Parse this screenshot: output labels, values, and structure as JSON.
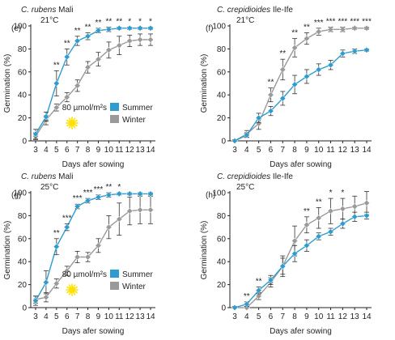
{
  "colors": {
    "summer": "#2e9ccf",
    "winter": "#9a9a9a",
    "axis": "#231f20",
    "sun": "#ffe100"
  },
  "chart_data": [
    {
      "type": "line",
      "panel_label": "(e)",
      "title_species": "C. rubens",
      "title_rest": " Mali",
      "temperature": "21°C",
      "xlabel": "Days afer sowing",
      "ylabel": "Germination (%)",
      "x": [
        3,
        4,
        5,
        6,
        7,
        8,
        9,
        10,
        11,
        12,
        13,
        14
      ],
      "xlim": [
        3,
        14
      ],
      "ylim": [
        0,
        100
      ],
      "yticks": [
        0,
        20,
        40,
        60,
        80,
        100
      ],
      "legend_note": "80 µmol/m²s",
      "sun_symbol": "yes",
      "significance": [
        "",
        "",
        "**",
        "**",
        "**",
        "**",
        "**",
        "**",
        "**",
        "*",
        "*",
        "*"
      ],
      "series": [
        {
          "name": "Summer",
          "key": "summer",
          "values": [
            6,
            21,
            50,
            73,
            87,
            91,
            96,
            97,
            98,
            98,
            98,
            98
          ],
          "errors": [
            4,
            4,
            11,
            7,
            4,
            3,
            2,
            2,
            1,
            1,
            1,
            1
          ]
        },
        {
          "name": "Winter",
          "key": "winter",
          "values": [
            4,
            18,
            29,
            38,
            48,
            64,
            71,
            79,
            83,
            87,
            88,
            88
          ],
          "errors": [
            3,
            4,
            3,
            4,
            5,
            5,
            6,
            7,
            8,
            5,
            5,
            5
          ]
        }
      ]
    },
    {
      "type": "line",
      "panel_label": "(f)",
      "title_species": "C. crepidioides",
      "title_rest": " Ile-Ife",
      "temperature": "21°C",
      "xlabel": "Days afer sowing",
      "ylabel": "Germination (%)",
      "x": [
        3,
        4,
        5,
        6,
        7,
        8,
        9,
        10,
        11,
        12,
        13,
        14
      ],
      "xlim": [
        3,
        14
      ],
      "ylim": [
        0,
        100
      ],
      "yticks": [
        0,
        20,
        40,
        60,
        80,
        100
      ],
      "significance": [
        "",
        "",
        "",
        "**",
        "**",
        "**",
        "**",
        "***",
        "***",
        "***",
        "***",
        "***"
      ],
      "series": [
        {
          "name": "Summer",
          "key": "summer",
          "values": [
            0,
            5,
            20,
            26,
            37,
            49,
            56,
            62,
            66,
            76,
            78,
            79
          ],
          "errors": [
            1,
            2,
            4,
            4,
            6,
            8,
            6,
            5,
            4,
            3,
            2,
            1
          ]
        },
        {
          "name": "Winter",
          "key": "winter",
          "values": [
            0,
            6,
            15,
            40,
            62,
            81,
            89,
            95,
            97,
            97,
            98,
            98
          ],
          "errors": [
            1,
            3,
            5,
            6,
            9,
            8,
            5,
            3,
            2,
            2,
            1,
            1
          ]
        }
      ]
    },
    {
      "type": "line",
      "panel_label": "(g)",
      "title_species": "C. rubens",
      "title_rest": " Mali",
      "temperature": "25°C",
      "xlabel": "Days afer sowing",
      "ylabel": "Germination (%)",
      "x": [
        3,
        4,
        5,
        6,
        7,
        8,
        9,
        10,
        11,
        12,
        13,
        14
      ],
      "xlim": [
        3,
        14
      ],
      "ylim": [
        0,
        100
      ],
      "yticks": [
        0,
        20,
        40,
        60,
        80,
        100
      ],
      "legend_note": "80 µmol/m²s",
      "sun_symbol": "yes",
      "significance": [
        "",
        "",
        "**",
        "***",
        "***",
        "***",
        "***",
        "**",
        "*",
        "",
        "",
        ""
      ],
      "series": [
        {
          "name": "Summer",
          "key": "summer",
          "values": [
            6,
            22,
            53,
            70,
            88,
            93,
            96,
            98,
            99,
            99,
            99,
            99
          ],
          "errors": [
            4,
            10,
            7,
            3,
            2,
            2,
            2,
            2,
            1,
            1,
            1,
            1
          ]
        },
        {
          "name": "Winter",
          "key": "winter",
          "values": [
            7,
            9,
            21,
            32,
            44,
            44,
            54,
            70,
            77,
            84,
            85,
            85
          ],
          "errors": [
            3,
            4,
            4,
            4,
            5,
            4,
            6,
            10,
            14,
            12,
            12,
            12
          ]
        }
      ]
    },
    {
      "type": "line",
      "panel_label": "(h)",
      "title_species": "C. crepidioides",
      "title_rest": " Ile-Ife",
      "temperature": "25°C",
      "xlabel": "Days afer sowing",
      "ylabel": "Germination (%)",
      "x": [
        3,
        4,
        5,
        6,
        7,
        8,
        9,
        10,
        11,
        12,
        13,
        14
      ],
      "xlim": [
        3,
        14
      ],
      "ylim": [
        0,
        100
      ],
      "yticks": [
        0,
        20,
        40,
        60,
        80,
        100
      ],
      "significance": [
        "",
        "**",
        "**",
        "",
        "",
        "",
        "**",
        "**",
        "*",
        "*",
        "",
        ""
      ],
      "series": [
        {
          "name": "Summer",
          "key": "summer",
          "values": [
            0,
            3,
            15,
            24,
            36,
            47,
            54,
            62,
            66,
            73,
            79,
            80
          ],
          "errors": [
            1,
            2,
            3,
            4,
            7,
            7,
            5,
            3,
            3,
            4,
            4,
            3
          ]
        },
        {
          "name": "Winter",
          "key": "winter",
          "values": [
            0,
            0,
            10,
            22,
            36,
            58,
            72,
            78,
            84,
            86,
            88,
            91
          ],
          "errors": [
            1,
            1,
            3,
            4,
            9,
            13,
            7,
            9,
            11,
            9,
            9,
            10
          ]
        }
      ]
    }
  ]
}
